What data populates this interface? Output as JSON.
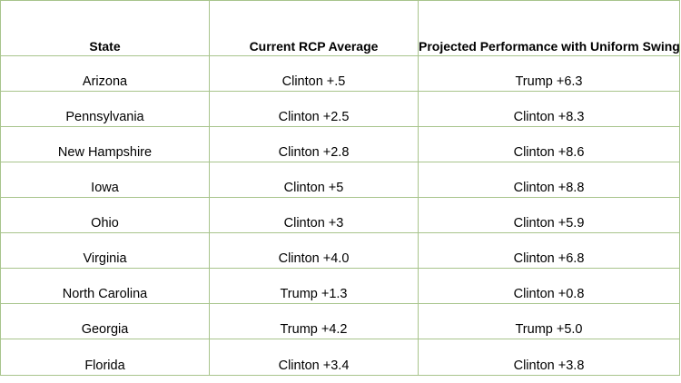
{
  "table": {
    "headers": [
      "State",
      "Current RCP Average",
      "Projected Performance with Uniform Swing"
    ],
    "rows": [
      [
        "Arizona",
        "Clinton +.5",
        "Trump +6.3"
      ],
      [
        "Pennsylvania",
        "Clinton +2.5",
        "Clinton +8.3"
      ],
      [
        "New Hampshire",
        "Clinton +2.8",
        "Clinton +8.6"
      ],
      [
        "Iowa",
        "Clinton +5",
        "Clinton +8.8"
      ],
      [
        "Ohio",
        "Clinton +3",
        "Clinton +5.9"
      ],
      [
        "Virginia",
        "Clinton +4.0",
        "Clinton +6.8"
      ],
      [
        "North Carolina",
        "Trump +1.3",
        "Clinton +0.8"
      ],
      [
        "Georgia",
        "Trump +4.2",
        "Trump +5.0"
      ],
      [
        "Florida",
        "Clinton +3.4",
        "Clinton +3.8"
      ]
    ]
  },
  "colors": {
    "border": "#a8c48c",
    "text": "#000000",
    "background": "#ffffff"
  }
}
